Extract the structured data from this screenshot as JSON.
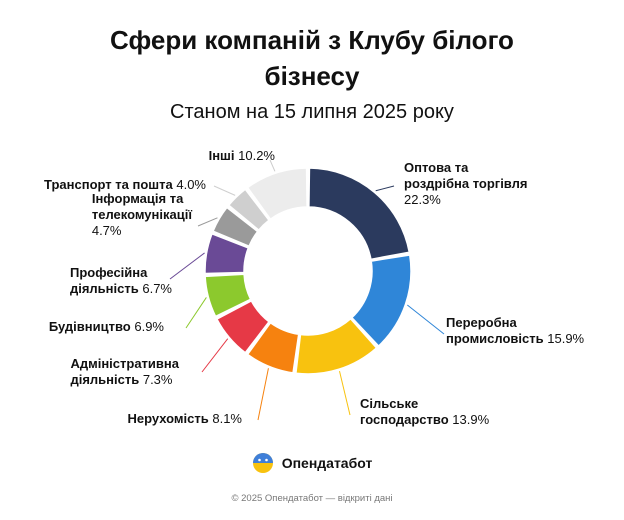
{
  "header": {
    "title_line1": "Сфери компаній з Клубу білого",
    "title_line2": "бізнесу",
    "subtitle": "Станом на 15 липня 2025 року"
  },
  "chart_data": {
    "type": "pie",
    "title": "Сфери компаній з Клубу білого бізнесу",
    "subtitle": "Станом на 15 липня 2025 року",
    "categories": [
      "Оптова та роздрібна торгівля",
      "Переробна промисловість",
      "Сільське господарство",
      "Нерухомість",
      "Адміністративна діяльність",
      "Будівництво",
      "Професійна діяльність",
      "Інформація та телекомунікації",
      "Транспорт та пошта",
      "Інші"
    ],
    "values": [
      22.3,
      15.9,
      13.9,
      8.1,
      7.3,
      6.9,
      6.7,
      4.7,
      4.0,
      10.2
    ],
    "colors": [
      "#2b3a5e",
      "#2f86d8",
      "#f8c20f",
      "#f6820f",
      "#e63946",
      "#8cc92d",
      "#6a4a96",
      "#9a9a9a",
      "#cfcfcf",
      "#ececec"
    ],
    "unit": "%",
    "hole": "donut"
  },
  "labels": [
    {
      "line1": "Оптова та",
      "line2": "роздрібна торгівля",
      "value": "22.3%"
    },
    {
      "line1": "Переробна",
      "line2": "промисловість",
      "value": "15.9%"
    },
    {
      "line1": "Сільське",
      "line2": "господарство",
      "value": "13.9%"
    },
    {
      "line1": "Нерухомість",
      "line2": "",
      "value": "8.1%"
    },
    {
      "line1": "Адміністративна",
      "line2": "діяльність",
      "value": "7.3%"
    },
    {
      "line1": "Будівництво",
      "line2": "",
      "value": "6.9%"
    },
    {
      "line1": "Професійна",
      "line2": "діяльність",
      "value": "6.7%"
    },
    {
      "line1": "Інформація та",
      "line2": "телекомунікації",
      "value": "4.7%"
    },
    {
      "line1": "Транспорт та пошта",
      "line2": "",
      "value": "4.0%"
    },
    {
      "line1": "Інші",
      "line2": "",
      "value": "10.2%"
    }
  ],
  "brand": {
    "name": "Опендатабот",
    "icon": "opendatabot-logo-icon"
  },
  "footer": {
    "text": "© 2025 Опендатабот — відкриті дані"
  }
}
